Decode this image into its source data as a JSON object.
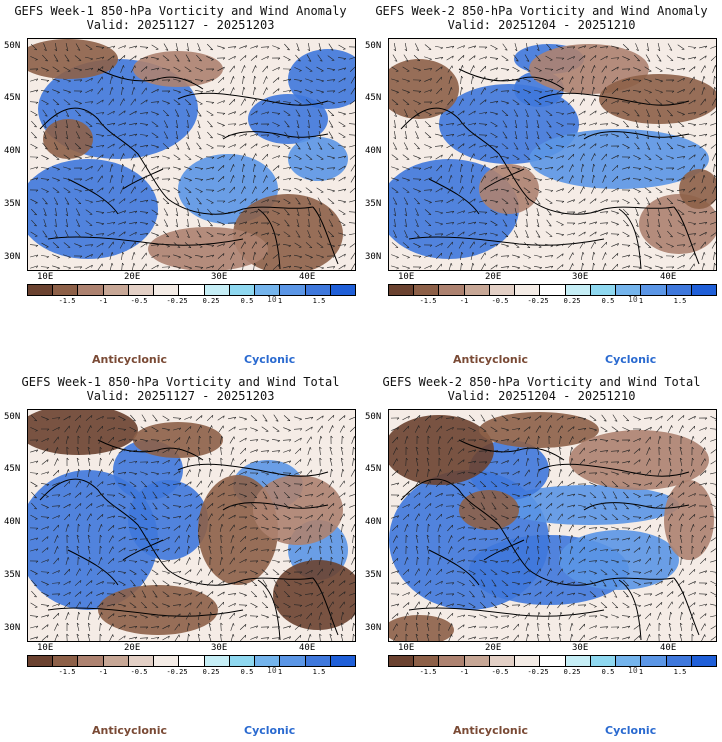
{
  "colors": {
    "scale": [
      "#6b4230",
      "#8d6048",
      "#ad8270",
      "#c7a796",
      "#e3d0c6",
      "#f4ece6",
      "#ffffff",
      "#c6eef6",
      "#8fd8f0",
      "#74b4ec",
      "#5b96e6",
      "#3f78dc",
      "#1f5fd8"
    ],
    "anticyclonic": "#7a4a35",
    "cyclonic": "#2a6ad0"
  },
  "shared": {
    "lat_labels": [
      "50N",
      "45N",
      "40N",
      "35N",
      "30N"
    ],
    "lon_labels": [
      "10E",
      "20E",
      "30E",
      "40E"
    ],
    "cbar_labels": [
      "-1.5",
      "-1",
      "-0.5",
      "-0.25",
      "0.25",
      "0.5",
      "1",
      "1.5"
    ],
    "unit_label": "10",
    "legend_anticyclonic": "Anticyclonic",
    "legend_cyclonic": "Cyclonic"
  },
  "panels": [
    {
      "title": "GEFS Week-1 850-hPa Vorticity and Wind Anomaly",
      "valid": "Valid: 20251127 - 20251203"
    },
    {
      "title": "GEFS Week-2 850-hPa Vorticity and Wind Anomaly",
      "valid": "Valid: 20251204 - 20251210"
    },
    {
      "title": "GEFS Week-1 850-hPa Vorticity and Wind Total",
      "valid": "Valid: 20251127 - 20251203"
    },
    {
      "title": "GEFS Week-2 850-hPa Vorticity and Wind Total",
      "valid": "Valid: 20251204 - 20251210"
    }
  ]
}
